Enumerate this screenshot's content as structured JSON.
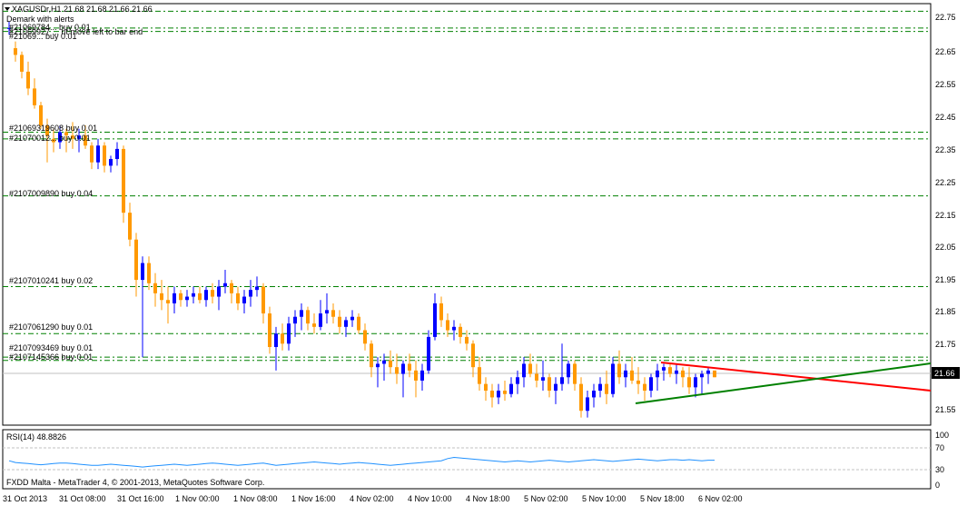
{
  "header": {
    "symbol_line": "XAGUSDr,H1  21.68 21.68 21.66 21.66",
    "indicator_line": "Demark with alerts",
    "overlay_line_1": "#21069784... buy 0.01",
    "overlay_line_2": "#21069927 ... nt move left to bar end",
    "overlay_line_3": "#21069... buy 0.01"
  },
  "price_axis": {
    "labels": [
      "22.75",
      "22.65",
      "22.55",
      "22.45",
      "22.35",
      "22.25",
      "22.15",
      "22.05",
      "21.95",
      "21.85",
      "21.75",
      "21.55"
    ],
    "current_price": "21.66",
    "current_price_bg": "#000000"
  },
  "order_labels": [
    {
      "text": "#21069319608 buy 0.01"
    },
    {
      "text": "#21070012... buy 0.01"
    },
    {
      "text": "#2107009890 buy 0.04"
    },
    {
      "text": "#2107010241 buy 0.02"
    },
    {
      "text": "#2107061290 buy 0.01"
    },
    {
      "text": "#2107093469 buy 0.01"
    },
    {
      "text": "#2107145366 buy 0.01"
    }
  ],
  "rsi": {
    "title": "RSI(14) 48.8826",
    "levels": [
      "100",
      "70",
      "30",
      "0"
    ]
  },
  "footer": {
    "copyright": "FXDD Malta - MetaTrader 4, © 2001-2013, MetaQuotes Software Corp."
  },
  "time_axis": {
    "labels": [
      "31 Oct 2013",
      "31 Oct 08:00",
      "31 Oct 16:00",
      "1 Nov 00:00",
      "1 Nov 08:00",
      "1 Nov 16:00",
      "4 Nov 02:00",
      "4 Nov 10:00",
      "4 Nov 18:00",
      "5 Nov 02:00",
      "5 Nov 10:00",
      "5 Nov 18:00",
      "6 Nov 02:00"
    ]
  },
  "colors": {
    "bull": "#0000ff",
    "bear": "#ff9900",
    "order_line": "#008000",
    "trend_red": "#ff0000",
    "trend_green": "#008000",
    "rsi_line": "#1e90ff"
  },
  "chart_data": {
    "type": "candlestick",
    "symbol": "XAGUSDr",
    "timeframe": "H1",
    "ohlc_last": [
      21.68,
      21.68,
      21.66,
      21.66
    ],
    "candles": [
      [
        22.7,
        22.72,
        22.68,
        22.7
      ],
      [
        22.64,
        22.66,
        22.6,
        22.62
      ],
      [
        22.62,
        22.63,
        22.55,
        22.57
      ],
      [
        22.57,
        22.6,
        22.5,
        22.52
      ],
      [
        22.52,
        22.55,
        22.46,
        22.47
      ],
      [
        22.47,
        22.48,
        22.4,
        22.41
      ],
      [
        22.41,
        22.43,
        22.3,
        22.38
      ],
      [
        22.37,
        22.4,
        22.33,
        22.36
      ],
      [
        22.36,
        22.41,
        22.34,
        22.39
      ],
      [
        22.39,
        22.4,
        22.33,
        22.38
      ],
      [
        22.38,
        22.42,
        22.34,
        22.37
      ],
      [
        22.37,
        22.4,
        22.33,
        22.38
      ],
      [
        22.38,
        22.41,
        22.34,
        22.35
      ],
      [
        22.35,
        22.36,
        22.28,
        22.3
      ],
      [
        22.3,
        22.37,
        22.28,
        22.35
      ],
      [
        22.35,
        22.36,
        22.27,
        22.29
      ],
      [
        22.29,
        22.32,
        22.27,
        22.31
      ],
      [
        22.31,
        22.36,
        22.29,
        22.34
      ],
      [
        22.34,
        22.35,
        22.12,
        22.15
      ],
      [
        22.15,
        22.18,
        22.05,
        22.07
      ],
      [
        22.07,
        22.09,
        21.9,
        21.95
      ],
      [
        21.95,
        22.02,
        21.72,
        22.0
      ],
      [
        22.0,
        22.02,
        21.92,
        21.94
      ],
      [
        21.94,
        21.97,
        21.87,
        21.91
      ],
      [
        21.91,
        21.95,
        21.86,
        21.89
      ],
      [
        21.89,
        21.93,
        21.82,
        21.88
      ],
      [
        21.88,
        21.93,
        21.85,
        21.91
      ],
      [
        21.91,
        21.92,
        21.87,
        21.89
      ],
      [
        21.89,
        21.92,
        21.87,
        21.9
      ],
      [
        21.9,
        21.93,
        21.88,
        21.91
      ],
      [
        21.91,
        21.93,
        21.88,
        21.89
      ],
      [
        21.89,
        21.93,
        21.87,
        21.92
      ],
      [
        21.92,
        21.94,
        21.88,
        21.9
      ],
      [
        21.9,
        21.95,
        21.86,
        21.93
      ],
      [
        21.93,
        21.98,
        21.91,
        21.94
      ],
      [
        21.94,
        21.95,
        21.88,
        21.91
      ],
      [
        21.91,
        21.93,
        21.86,
        21.88
      ],
      [
        21.88,
        21.92,
        21.85,
        21.9
      ],
      [
        21.9,
        21.95,
        21.87,
        21.92
      ],
      [
        21.92,
        21.96,
        21.9,
        21.93
      ],
      [
        21.93,
        21.94,
        21.82,
        21.85
      ],
      [
        21.85,
        21.87,
        21.73,
        21.75
      ],
      [
        21.75,
        21.81,
        21.68,
        21.79
      ],
      [
        21.79,
        21.82,
        21.74,
        21.76
      ],
      [
        21.76,
        21.84,
        21.74,
        21.82
      ],
      [
        21.82,
        21.86,
        21.78,
        21.84
      ],
      [
        21.84,
        21.88,
        21.8,
        21.86
      ],
      [
        21.86,
        21.87,
        21.8,
        21.82
      ],
      [
        21.82,
        21.85,
        21.79,
        21.81
      ],
      [
        21.81,
        21.89,
        21.8,
        21.85
      ],
      [
        21.85,
        21.91,
        21.82,
        21.86
      ],
      [
        21.86,
        21.88,
        21.82,
        21.84
      ],
      [
        21.84,
        21.86,
        21.79,
        21.81
      ],
      [
        21.81,
        21.84,
        21.78,
        21.83
      ],
      [
        21.83,
        21.86,
        21.81,
        21.84
      ],
      [
        21.84,
        21.85,
        21.79,
        21.8
      ],
      [
        21.8,
        21.82,
        21.74,
        21.76
      ],
      [
        21.76,
        21.77,
        21.66,
        21.69
      ],
      [
        21.69,
        21.72,
        21.63,
        21.7
      ],
      [
        21.7,
        21.73,
        21.65,
        21.71
      ],
      [
        21.71,
        21.74,
        21.67,
        21.69
      ],
      [
        21.69,
        21.73,
        21.64,
        21.67
      ],
      [
        21.67,
        21.71,
        21.6,
        21.7
      ],
      [
        21.7,
        21.73,
        21.66,
        21.68
      ],
      [
        21.68,
        21.71,
        21.6,
        21.65
      ],
      [
        21.65,
        21.7,
        21.62,
        21.68
      ],
      [
        21.68,
        21.8,
        21.67,
        21.78
      ],
      [
        21.78,
        21.91,
        21.77,
        21.88
      ],
      [
        21.88,
        21.9,
        21.81,
        21.83
      ],
      [
        21.83,
        21.85,
        21.78,
        21.8
      ],
      [
        21.8,
        21.83,
        21.77,
        21.81
      ],
      [
        21.81,
        21.82,
        21.76,
        21.78
      ],
      [
        21.78,
        21.8,
        21.74,
        21.76
      ],
      [
        21.76,
        21.77,
        21.66,
        21.69
      ],
      [
        21.69,
        21.72,
        21.62,
        21.64
      ],
      [
        21.64,
        21.66,
        21.59,
        21.62
      ],
      [
        21.62,
        21.64,
        21.57,
        21.6
      ],
      [
        21.6,
        21.64,
        21.58,
        21.62
      ],
      [
        21.62,
        21.65,
        21.59,
        21.61
      ],
      [
        21.61,
        21.66,
        21.6,
        21.64
      ],
      [
        21.64,
        21.68,
        21.61,
        21.66
      ],
      [
        21.66,
        21.72,
        21.63,
        21.7
      ],
      [
        21.7,
        21.73,
        21.66,
        21.67
      ],
      [
        21.67,
        21.7,
        21.63,
        21.65
      ],
      [
        21.65,
        21.71,
        21.62,
        21.66
      ],
      [
        21.66,
        21.67,
        21.6,
        21.62
      ],
      [
        21.62,
        21.66,
        21.58,
        21.64
      ],
      [
        21.64,
        21.76,
        21.62,
        21.66
      ],
      [
        21.66,
        21.71,
        21.64,
        21.7
      ],
      [
        21.7,
        21.71,
        21.62,
        21.64
      ],
      [
        21.64,
        21.66,
        21.54,
        21.56
      ],
      [
        21.56,
        21.62,
        21.54,
        21.6
      ],
      [
        21.6,
        21.64,
        21.57,
        21.62
      ],
      [
        21.62,
        21.66,
        21.6,
        21.64
      ],
      [
        21.64,
        21.68,
        21.58,
        21.61
      ],
      [
        21.61,
        21.72,
        21.6,
        21.7
      ],
      [
        21.7,
        21.74,
        21.64,
        21.66
      ],
      [
        21.66,
        21.7,
        21.63,
        21.68
      ],
      [
        21.68,
        21.72,
        21.64,
        21.65
      ],
      [
        21.65,
        21.69,
        21.61,
        21.64
      ],
      [
        21.64,
        21.66,
        21.59,
        21.62
      ],
      [
        21.62,
        21.67,
        21.6,
        21.66
      ],
      [
        21.66,
        21.7,
        21.62,
        21.68
      ],
      [
        21.68,
        21.7,
        21.65,
        21.69
      ],
      [
        21.69,
        21.7,
        21.66,
        21.67
      ],
      [
        21.67,
        21.7,
        21.64,
        21.68
      ],
      [
        21.68,
        21.69,
        21.63,
        21.66
      ],
      [
        21.66,
        21.69,
        21.61,
        21.63
      ],
      [
        21.63,
        21.67,
        21.6,
        21.66
      ],
      [
        21.66,
        21.68,
        21.61,
        21.67
      ],
      [
        21.67,
        21.69,
        21.64,
        21.68
      ],
      [
        21.68,
        21.68,
        21.66,
        21.66
      ]
    ],
    "order_levels": [
      22.39,
      22.37,
      22.2,
      21.93,
      21.79,
      21.72,
      21.71
    ],
    "y_axis_range": [
      21.52,
      22.77
    ],
    "rsi_series": [
      48,
      45,
      44,
      43,
      42,
      41,
      42,
      43,
      44,
      44,
      43,
      42,
      41,
      40,
      40,
      41,
      42,
      41,
      40,
      39,
      38,
      37,
      38,
      39,
      40,
      41,
      42,
      41,
      40,
      41,
      42,
      43,
      44,
      43,
      42,
      41,
      40,
      41,
      42,
      43,
      44,
      42,
      40,
      41,
      42,
      43,
      44,
      45,
      46,
      45,
      44,
      43,
      42,
      43,
      44,
      45,
      44,
      43,
      42,
      41,
      40,
      41,
      42,
      43,
      44,
      45,
      46,
      47,
      48,
      52,
      54,
      53,
      52,
      51,
      50,
      49,
      48,
      47,
      46,
      47,
      48,
      47,
      46,
      47,
      48,
      49,
      48,
      47,
      46,
      47,
      48,
      49,
      50,
      49,
      48,
      47,
      48,
      49,
      50,
      51,
      50,
      49,
      48,
      49,
      50,
      50,
      49,
      50,
      49,
      48,
      49,
      49
    ]
  }
}
